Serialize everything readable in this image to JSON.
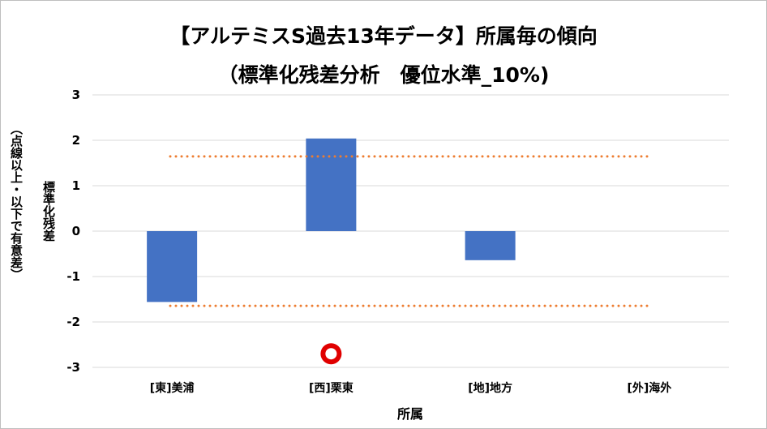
{
  "colors": {
    "bar": "#4472C4",
    "threshold_line": "#ED7D31",
    "marker_edge": "#E00000",
    "gridline": "#D9D9D9"
  },
  "chart_data": {
    "type": "bar",
    "title_line1": "【アルテミスS過去13年データ】所属毎の傾向",
    "title_line2": "（標準化残差分析　優位水準_10%)",
    "xlabel": "所属",
    "ylabel": "標準化残差",
    "ylabel_note": "（点線以上・以下で有意差）",
    "categories": [
      "[東]美浦",
      "[西]栗東",
      "[地]地方",
      "[外]海外"
    ],
    "values": [
      -1.56,
      2.04,
      -0.64,
      0
    ],
    "ylim": [
      -3,
      3
    ],
    "yticks": [
      "3",
      "2",
      "1",
      "0",
      "-1",
      "-2",
      "-3"
    ],
    "threshold_upper": 1.645,
    "threshold_lower": -1.645,
    "grid": true,
    "marker": {
      "category": "[西]栗東",
      "y": -2.7,
      "shape": "circle"
    }
  }
}
